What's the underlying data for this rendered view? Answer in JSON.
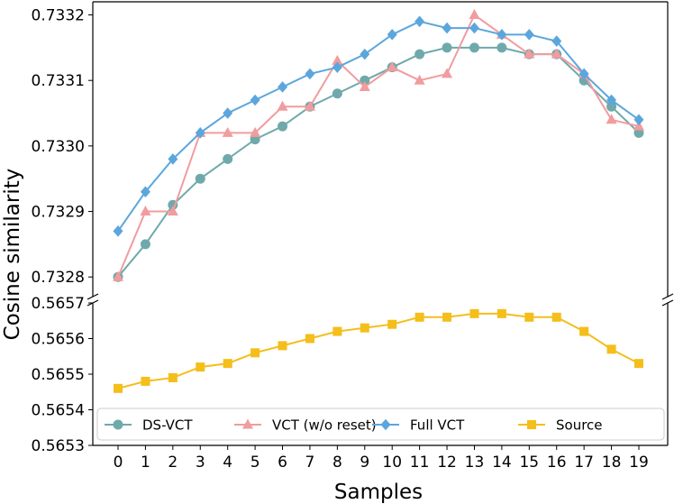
{
  "chart_data": {
    "type": "line",
    "xlabel": "Samples",
    "ylabel": "Cosine similarity",
    "broken_y_axis": true,
    "x": [
      0,
      1,
      2,
      3,
      4,
      5,
      6,
      7,
      8,
      9,
      10,
      11,
      12,
      13,
      14,
      15,
      16,
      17,
      18,
      19
    ],
    "x_tick_labels": [
      "0",
      "1",
      "2",
      "3",
      "4",
      "5",
      "6",
      "7",
      "8",
      "9",
      "10",
      "11",
      "12",
      "13",
      "14",
      "15",
      "16",
      "17",
      "18",
      "19"
    ],
    "upper_panel": {
      "ylim": [
        0.73277,
        0.73322
      ],
      "y_ticks": [
        0.7328,
        0.7329,
        0.733,
        0.7331,
        0.7332
      ],
      "y_tick_labels": [
        "0.7328",
        "0.7329",
        "0.7330",
        "0.7331",
        "0.7332"
      ]
    },
    "lower_panel": {
      "ylim": [
        0.5653,
        0.5657
      ],
      "y_ticks": [
        0.5653,
        0.5654,
        0.5655,
        0.5656,
        0.5657
      ],
      "y_tick_labels": [
        "0.5653",
        "0.5654",
        "0.5655",
        "0.5656",
        "0.5657"
      ]
    },
    "series": [
      {
        "name": "DS-VCT",
        "panel": "upper",
        "color": "#6fa9ab",
        "marker": "circle",
        "values": [
          0.7328,
          0.73285,
          0.73291,
          0.73295,
          0.73298,
          0.73301,
          0.73303,
          0.73306,
          0.73308,
          0.7331,
          0.73312,
          0.73314,
          0.73315,
          0.73315,
          0.73315,
          0.73314,
          0.73314,
          0.7331,
          0.73306,
          0.73302
        ]
      },
      {
        "name": "VCT (w/o reset)",
        "panel": "upper",
        "color": "#f19c9e",
        "marker": "triangle",
        "values": [
          0.7328,
          0.7329,
          0.7329,
          0.73302,
          0.73302,
          0.73302,
          0.73306,
          0.73306,
          0.73313,
          0.73309,
          0.73312,
          0.7331,
          0.73311,
          0.7332,
          0.73317,
          0.73314,
          0.73314,
          0.73311,
          0.73304,
          0.73303
        ]
      },
      {
        "name": "Full VCT",
        "panel": "upper",
        "color": "#5ba6dd",
        "marker": "diamond",
        "values": [
          0.73287,
          0.73293,
          0.73298,
          0.73302,
          0.73305,
          0.73307,
          0.73309,
          0.73311,
          0.73312,
          0.73314,
          0.73317,
          0.73319,
          0.73318,
          0.73318,
          0.73317,
          0.73317,
          0.73316,
          0.73311,
          0.73307,
          0.73304
        ]
      },
      {
        "name": "Source",
        "panel": "lower",
        "color": "#f4be1b",
        "marker": "square",
        "values": [
          0.56546,
          0.56548,
          0.56549,
          0.56552,
          0.56553,
          0.56556,
          0.56558,
          0.5656,
          0.56562,
          0.56563,
          0.56564,
          0.56566,
          0.56566,
          0.56567,
          0.56567,
          0.56566,
          0.56566,
          0.56562,
          0.56557,
          0.56553
        ]
      }
    ],
    "legend": {
      "placement": "bottom",
      "columns": 4
    },
    "grid": false
  }
}
